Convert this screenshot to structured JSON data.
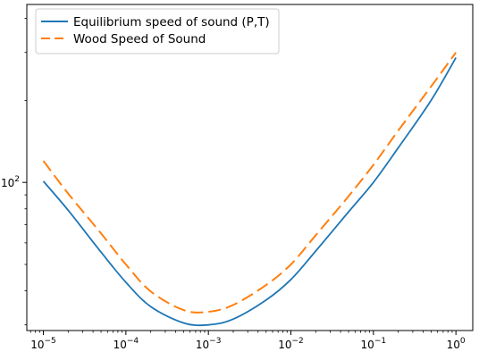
{
  "chart_data": {
    "type": "line",
    "xscale": "log",
    "yscale": "log",
    "xlim": [
      6.3e-06,
      1.6
    ],
    "ylim": [
      28.6,
      450
    ],
    "grid": false,
    "legend_position": "top-left",
    "xticks": [
      {
        "value": 1e-05,
        "base": "10",
        "exp": "−5"
      },
      {
        "value": 0.0001,
        "base": "10",
        "exp": "−4"
      },
      {
        "value": 0.001,
        "base": "10",
        "exp": "−3"
      },
      {
        "value": 0.01,
        "base": "10",
        "exp": "−2"
      },
      {
        "value": 0.1,
        "base": "10",
        "exp": "−1"
      },
      {
        "value": 1,
        "base": "10",
        "exp": "0"
      }
    ],
    "yticks": [
      {
        "value": 100,
        "base": "10",
        "exp": "2"
      }
    ],
    "x": [
      1e-05,
      2e-05,
      5e-05,
      0.0001,
      0.0002,
      0.0005,
      0.001,
      0.002,
      0.005,
      0.01,
      0.02,
      0.05,
      0.1,
      0.2,
      0.5,
      1
    ],
    "series": [
      {
        "name": "Equilibrium speed of sound (P,T)",
        "color": "#1f77b4",
        "dash": "solid",
        "values": [
          101,
          79,
          55.5,
          43,
          35,
          30.5,
          30,
          31.5,
          37,
          44,
          56,
          78,
          100,
          134,
          200,
          287
        ]
      },
      {
        "name": "Wood Speed of Sound",
        "color": "#ff7f0e",
        "dash": "dashed",
        "values": [
          120,
          91,
          65,
          50,
          39.8,
          34,
          33.5,
          35.5,
          42,
          50,
          64,
          89,
          116,
          155,
          225,
          300
        ]
      }
    ]
  }
}
